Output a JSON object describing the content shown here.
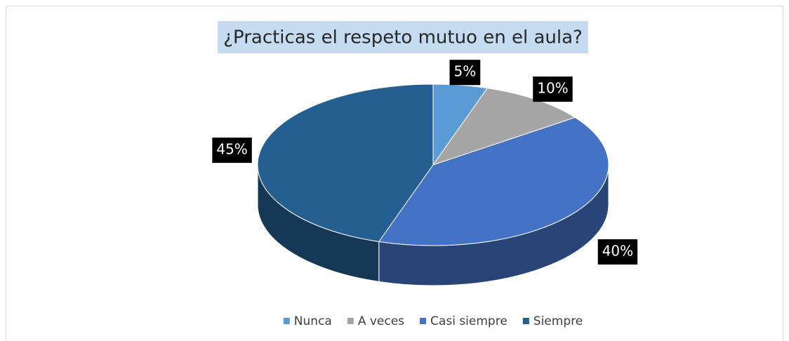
{
  "chart_data": {
    "type": "pie",
    "title": "¿Practicas el respeto mutuo en el aula?",
    "categories": [
      "Nunca",
      "A veces",
      "Casi siempre",
      "Siempre"
    ],
    "values": [
      5,
      10,
      40,
      45
    ],
    "value_labels": [
      "5%",
      "10%",
      "40%",
      "45%"
    ],
    "colors": [
      "#5b9bd5",
      "#a5a5a5",
      "#4472c4",
      "#255e91"
    ],
    "legend": "bottom"
  }
}
